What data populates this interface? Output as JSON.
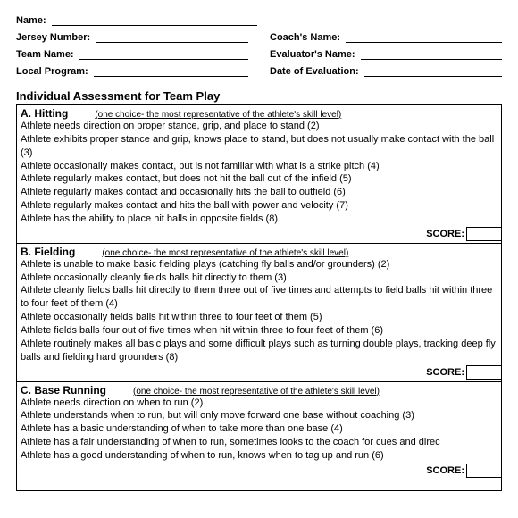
{
  "header": {
    "name_label": "Name:",
    "jersey_label": "Jersey Number:",
    "team_label": "Team Name:",
    "program_label": "Local Program:",
    "coach_label": "Coach's Name:",
    "evaluator_label": "Evaluator's Name:",
    "date_label": "Date of Evaluation:"
  },
  "title": "Individual Assessment for Team Play",
  "note": "(one choice- the most representative of the athlete's skill level)",
  "score_label": "SCORE:",
  "sections": {
    "a": {
      "title": "A. Hitting",
      "items": [
        "Athlete needs direction on proper stance, grip, and place to stand (2)",
        "Athlete exhibits proper stance and grip, knows place to stand, but does not usually make contact with the ball (3)",
        "Athlete occasionally makes contact, but is not familiar with what is a strike pitch (4)",
        "Athlete regularly makes contact, but does not hit the ball out of the infield (5)",
        "Athlete regularly makes contact and occasionally hits the ball to outfield (6)",
        "Athlete regularly makes contact and hits the ball with power and velocity (7)",
        "Athlete has the ability to place hit balls in opposite fields (8)"
      ]
    },
    "b": {
      "title": "B. Fielding",
      "items": [
        "Athlete is unable to make basic fielding plays (catching fly balls and/or grounders)  (2)",
        "Athlete occasionally cleanly fields balls hit directly to them (3)",
        "Athlete cleanly fields balls hit directly to them three out of five times and attempts to field balls hit within three to four feet of them (4)",
        "Athlete occasionally fields balls hit within three to four feet of them (5)",
        "Athlete fields balls four out of five times when hit within three to four feet of them (6)",
        "Athlete routinely makes all basic plays and some difficult plays such as turning double plays, tracking deep fly balls and fielding hard grounders (8)"
      ]
    },
    "c": {
      "title": "C. Base Running",
      "items": [
        "Athlete needs direction on when to run (2)",
        "Athlete understands when to run, but will only move forward one base without coaching (3)",
        "Athlete has a basic understanding of when to take more than one base (4)",
        "Athlete has a fair understanding of when to run, sometimes looks to the coach for cues and direc",
        "Athlete has a good understanding of when to run, knows when to tag up and run (6)"
      ]
    }
  }
}
